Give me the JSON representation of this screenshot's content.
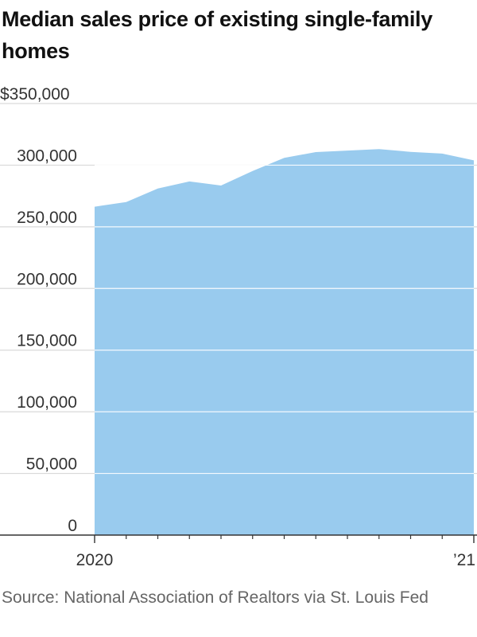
{
  "title": "Median sales price of existing single-family homes",
  "source": "Source: National Association of Realtors via St. Louis Fed",
  "colors": {
    "area": "#99cbee",
    "grid": "#d9d9d9",
    "axis": "#333333",
    "text": "#333333"
  },
  "chart_data": {
    "type": "area",
    "title": "Median sales price of existing single-family homes",
    "xlabel": "",
    "ylabel": "",
    "ylim": [
      0,
      350000
    ],
    "yticks": [
      {
        "value": 350000,
        "label": "$350,000"
      },
      {
        "value": 300000,
        "label": "300,000"
      },
      {
        "value": 250000,
        "label": "250,000"
      },
      {
        "value": 200000,
        "label": "200,000"
      },
      {
        "value": 150000,
        "label": "150,000"
      },
      {
        "value": 100000,
        "label": "100,000"
      },
      {
        "value": 50000,
        "label": "50,000"
      },
      {
        "value": 0,
        "label": "0"
      }
    ],
    "xlim": [
      "2020-01",
      "2021-01"
    ],
    "xticks_major": [
      {
        "x": "2020-01",
        "label": "2020"
      },
      {
        "x": "2021-01",
        "label": "’21"
      }
    ],
    "xticks_minor": [
      "2020-02",
      "2020-03",
      "2020-04",
      "2020-05",
      "2020-06",
      "2020-07",
      "2020-08",
      "2020-09",
      "2020-10",
      "2020-11",
      "2020-12"
    ],
    "grid": true,
    "x": [
      "2020-01",
      "2020-02",
      "2020-03",
      "2020-04",
      "2020-05",
      "2020-06",
      "2020-07",
      "2020-08",
      "2020-09",
      "2020-10",
      "2020-11",
      "2020-12",
      "2021-01"
    ],
    "values": [
      266300,
      270100,
      281100,
      286800,
      283500,
      295300,
      305900,
      310600,
      311800,
      313000,
      310800,
      309400,
      303900
    ]
  }
}
